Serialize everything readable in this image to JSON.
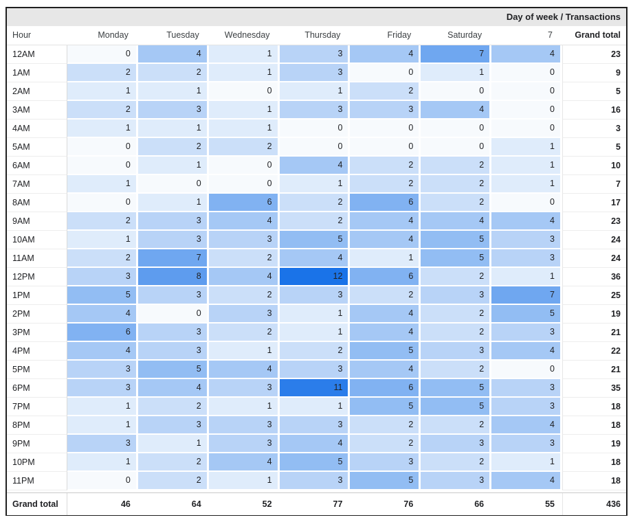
{
  "title": "Day of week / Transactions",
  "labels": {
    "hour_header": "Hour",
    "grand_total_column_header": "Grand total",
    "grand_total_row_label": "Grand total"
  },
  "colors": {
    "title_bar_bg": "#e7e7e7",
    "frame_border": "#1f1f1f",
    "text": "#202124",
    "header_text": "#3c4043",
    "grid_line": "#e3e3e3"
  },
  "heatmap": {
    "min_color": "#f7fafd",
    "max_color": "#1a73e8",
    "min_value": 0,
    "max_value": 12
  },
  "chart_data": {
    "type": "heatmap",
    "title": "Day of week / Transactions",
    "x_categories": [
      "Monday",
      "Tuesday",
      "Wednesday",
      "Thursday",
      "Friday",
      "Saturday",
      "7"
    ],
    "y_categories": [
      "12AM",
      "1AM",
      "2AM",
      "3AM",
      "4AM",
      "5AM",
      "6AM",
      "7AM",
      "8AM",
      "9AM",
      "10AM",
      "11AM",
      "12PM",
      "1PM",
      "2PM",
      "3PM",
      "4PM",
      "5PM",
      "6PM",
      "7PM",
      "8PM",
      "9PM",
      "10PM",
      "11PM"
    ],
    "values": [
      [
        0,
        4,
        1,
        3,
        4,
        7,
        4
      ],
      [
        2,
        2,
        1,
        3,
        0,
        1,
        0
      ],
      [
        1,
        1,
        0,
        1,
        2,
        0,
        0
      ],
      [
        2,
        3,
        1,
        3,
        3,
        4,
        0
      ],
      [
        1,
        1,
        1,
        0,
        0,
        0,
        0
      ],
      [
        0,
        2,
        2,
        0,
        0,
        0,
        1
      ],
      [
        0,
        1,
        0,
        4,
        2,
        2,
        1
      ],
      [
        1,
        0,
        0,
        1,
        2,
        2,
        1
      ],
      [
        0,
        1,
        6,
        2,
        6,
        2,
        0
      ],
      [
        2,
        3,
        4,
        2,
        4,
        4,
        4
      ],
      [
        1,
        3,
        3,
        5,
        4,
        5,
        3
      ],
      [
        2,
        7,
        2,
        4,
        1,
        5,
        3
      ],
      [
        3,
        8,
        4,
        12,
        6,
        2,
        1
      ],
      [
        5,
        3,
        2,
        3,
        2,
        3,
        7
      ],
      [
        4,
        0,
        3,
        1,
        4,
        2,
        5
      ],
      [
        6,
        3,
        2,
        1,
        4,
        2,
        3
      ],
      [
        4,
        3,
        1,
        2,
        5,
        3,
        4
      ],
      [
        3,
        5,
        4,
        3,
        4,
        2,
        0
      ],
      [
        3,
        4,
        3,
        11,
        6,
        5,
        3
      ],
      [
        1,
        2,
        1,
        1,
        5,
        5,
        3
      ],
      [
        1,
        3,
        3,
        3,
        2,
        2,
        4
      ],
      [
        3,
        1,
        3,
        4,
        2,
        3,
        3
      ],
      [
        1,
        2,
        4,
        5,
        3,
        2,
        1
      ],
      [
        0,
        2,
        1,
        3,
        5,
        3,
        4
      ]
    ],
    "row_totals": [
      23,
      9,
      5,
      16,
      3,
      5,
      10,
      7,
      17,
      23,
      24,
      24,
      36,
      25,
      19,
      21,
      22,
      21,
      35,
      18,
      18,
      19,
      18,
      18
    ],
    "column_totals": [
      46,
      64,
      52,
      77,
      76,
      66,
      55
    ],
    "grand_total": 436,
    "color_range": [
      "#f7fafd",
      "#1a73e8"
    ],
    "value_range": [
      0,
      12
    ],
    "legend_position": "none",
    "grid": false
  }
}
